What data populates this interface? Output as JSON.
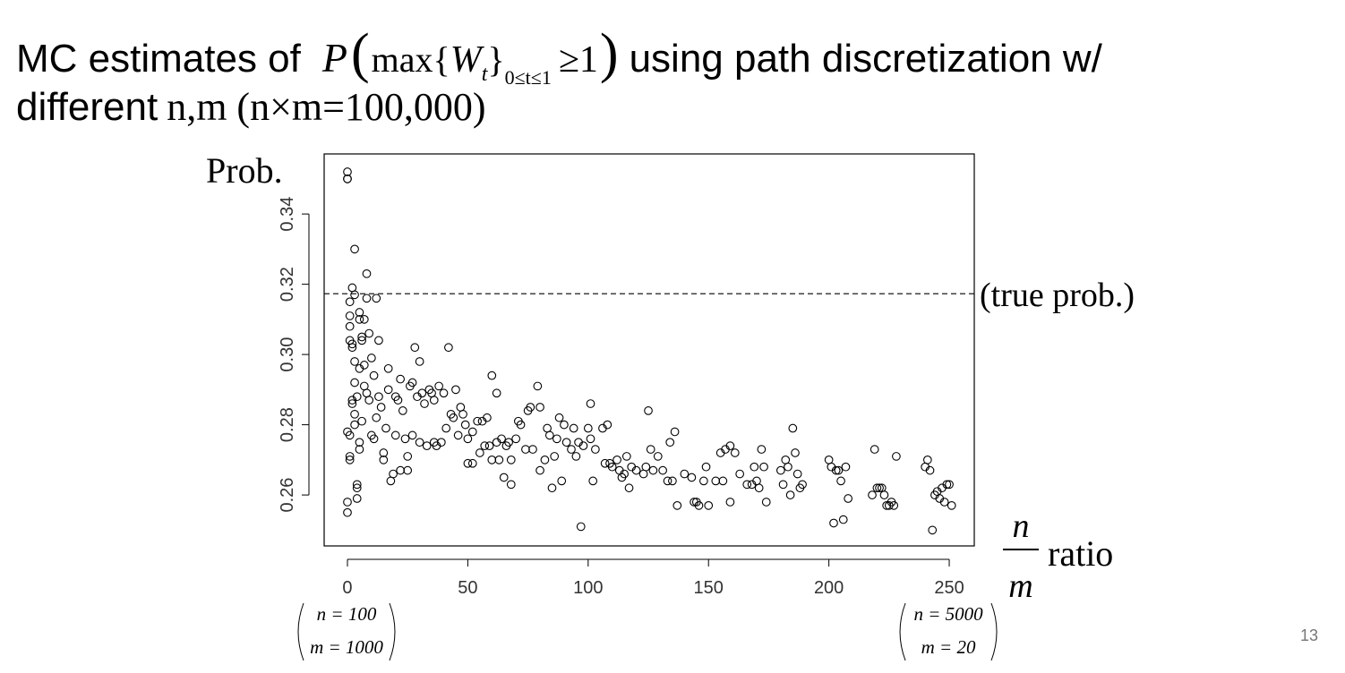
{
  "slide": {
    "title_start": "MC estimates of",
    "formula": {
      "p": "P",
      "lparen": "(",
      "max": "max",
      "lbrace": "{",
      "w": "W",
      "t": "t",
      "rbrace": "}",
      "range": "0≤t≤1",
      "rel": "≥1",
      "rparen": ")"
    },
    "title_end": "using path discretization w/",
    "title_line2": "different",
    "title_line2_math": "n,m (n×m=100,000)",
    "page_number": "13"
  },
  "chart_data": {
    "type": "scatter",
    "y_label": "Prob.",
    "x_label": {
      "numerator": "n",
      "denominator": "m",
      "text": "ratio"
    },
    "reference": {
      "value": 0.3173,
      "label": "(true prob.)"
    },
    "x_notes": [
      {
        "n": "n = 100",
        "m": "m = 1000"
      },
      {
        "n": "n = 5000",
        "m": "m = 20"
      }
    ],
    "color": "#000000",
    "marker": "open-circle",
    "xlim": [
      -9.67,
      260.4
    ],
    "ylim": [
      0.2455,
      0.3571
    ],
    "xticks": [
      0,
      50,
      100,
      150,
      200,
      250
    ],
    "yticks": [
      0.26,
      0.28,
      {
        "value": 0.3,
        "label": "0.30"
      },
      0.32,
      0.34
    ],
    "x": [
      0,
      0,
      0,
      1,
      1,
      1,
      1,
      0,
      1,
      1,
      0,
      0,
      1,
      2,
      2,
      2,
      2,
      2,
      3,
      3,
      3,
      3,
      3,
      3,
      4,
      4,
      4,
      4,
      5,
      5,
      5,
      5,
      5,
      6,
      6,
      6,
      7,
      7,
      7,
      8,
      8,
      8,
      9,
      9,
      10,
      10,
      11,
      11,
      12,
      12,
      13,
      13,
      14,
      15,
      15,
      16,
      17,
      17,
      18,
      19,
      20,
      20,
      21,
      22,
      22,
      23,
      24,
      25,
      25,
      26,
      27,
      27,
      28,
      29,
      30,
      30,
      31,
      32,
      33,
      34,
      35,
      36,
      36,
      37,
      38,
      39,
      40,
      41,
      42,
      43,
      44,
      45,
      46,
      47,
      48,
      49,
      50,
      50,
      52,
      52,
      54,
      55,
      56,
      57,
      58,
      59,
      60,
      60,
      62,
      62,
      63,
      64,
      65,
      66,
      67,
      68,
      68,
      70,
      71,
      72,
      74,
      75,
      76,
      77,
      79,
      80,
      80,
      82,
      83,
      84,
      85,
      86,
      87,
      88,
      89,
      90,
      91,
      93,
      94,
      95,
      96,
      97,
      98,
      100,
      101,
      101,
      102,
      103,
      106,
      107,
      108,
      109,
      110,
      112,
      113,
      114,
      115,
      116,
      117,
      118,
      120,
      123,
      124,
      125,
      126,
      127,
      129,
      131,
      133,
      134,
      135,
      136,
      137,
      140,
      143,
      144,
      145,
      146,
      148,
      149,
      150,
      153,
      155,
      156,
      157,
      159,
      159,
      161,
      163,
      166,
      168,
      169,
      170,
      171,
      172,
      173,
      174,
      180,
      181,
      182,
      183,
      184,
      185,
      186,
      187,
      188,
      189,
      200,
      201,
      202,
      203,
      204,
      205,
      206,
      207,
      208,
      218,
      219,
      220,
      221,
      222,
      223,
      224,
      225,
      226,
      227,
      228,
      240,
      241,
      242,
      243,
      244,
      245,
      246,
      247,
      248,
      249,
      250,
      251
    ],
    "values": [
      0.352,
      0.35,
      0.35,
      0.315,
      0.311,
      0.308,
      0.304,
      0.278,
      0.277,
      0.27,
      0.258,
      0.255,
      0.271,
      0.319,
      0.303,
      0.302,
      0.287,
      0.286,
      0.33,
      0.317,
      0.298,
      0.292,
      0.283,
      0.28,
      0.288,
      0.263,
      0.262,
      0.259,
      0.312,
      0.31,
      0.296,
      0.275,
      0.273,
      0.305,
      0.304,
      0.281,
      0.31,
      0.297,
      0.291,
      0.323,
      0.316,
      0.289,
      0.306,
      0.287,
      0.299,
      0.277,
      0.294,
      0.276,
      0.316,
      0.282,
      0.304,
      0.288,
      0.285,
      0.272,
      0.27,
      0.279,
      0.29,
      0.296,
      0.264,
      0.266,
      0.288,
      0.277,
      0.287,
      0.293,
      0.267,
      0.284,
      0.276,
      0.271,
      0.267,
      0.291,
      0.292,
      0.277,
      0.302,
      0.288,
      0.275,
      0.298,
      0.289,
      0.286,
      0.274,
      0.29,
      0.289,
      0.275,
      0.287,
      0.274,
      0.291,
      0.275,
      0.289,
      0.279,
      0.302,
      0.283,
      0.282,
      0.29,
      0.277,
      0.285,
      0.283,
      0.28,
      0.269,
      0.276,
      0.278,
      0.269,
      0.281,
      0.272,
      0.281,
      0.274,
      0.282,
      0.274,
      0.294,
      0.27,
      0.289,
      0.275,
      0.27,
      0.276,
      0.265,
      0.274,
      0.275,
      0.263,
      0.27,
      0.276,
      0.281,
      0.28,
      0.273,
      0.284,
      0.285,
      0.273,
      0.291,
      0.267,
      0.285,
      0.27,
      0.279,
      0.277,
      0.262,
      0.271,
      0.276,
      0.282,
      0.264,
      0.28,
      0.275,
      0.273,
      0.279,
      0.271,
      0.275,
      0.251,
      0.274,
      0.279,
      0.286,
      0.276,
      0.264,
      0.273,
      0.279,
      0.269,
      0.28,
      0.269,
      0.268,
      0.27,
      0.267,
      0.265,
      0.266,
      0.271,
      0.262,
      0.268,
      0.267,
      0.266,
      0.268,
      0.284,
      0.273,
      0.267,
      0.271,
      0.267,
      0.264,
      0.275,
      0.264,
      0.278,
      0.257,
      0.266,
      0.265,
      0.258,
      0.258,
      0.257,
      0.264,
      0.268,
      0.257,
      0.264,
      0.272,
      0.264,
      0.273,
      0.258,
      0.274,
      0.272,
      0.266,
      0.263,
      0.263,
      0.268,
      0.264,
      0.262,
      0.273,
      0.268,
      0.258,
      0.267,
      0.263,
      0.27,
      0.268,
      0.26,
      0.279,
      0.272,
      0.266,
      0.262,
      0.263,
      0.27,
      0.268,
      0.252,
      0.267,
      0.267,
      0.264,
      0.253,
      0.268,
      0.259,
      0.26,
      0.273,
      0.262,
      0.262,
      0.262,
      0.26,
      0.257,
      0.257,
      0.258,
      0.257,
      0.271,
      0.268,
      0.27,
      0.267,
      0.25,
      0.26,
      0.261,
      0.259,
      0.262,
      0.258,
      0.263,
      0.263,
      0.257
    ]
  }
}
